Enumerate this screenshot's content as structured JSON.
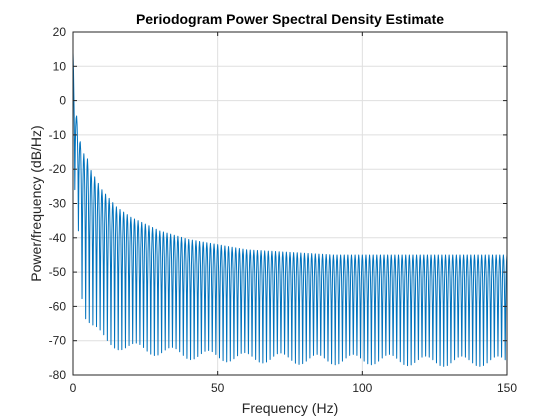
{
  "chart_data": {
    "type": "line",
    "title": "Periodogram Power Spectral Density Estimate",
    "xlabel": "Frequency (Hz)",
    "ylabel": "Power/frequency (dB/Hz)",
    "xlim": [
      0,
      150
    ],
    "ylim": [
      -80,
      20
    ],
    "xticks": [
      0,
      50,
      100,
      150
    ],
    "yticks": [
      20,
      10,
      0,
      -10,
      -20,
      -30,
      -40,
      -50,
      -60,
      -70,
      -80
    ],
    "grid": true,
    "color": "#0072BD",
    "series": [
      {
        "x": [
          0,
          0.5,
          1,
          1.5,
          2,
          2.5,
          3,
          3.5,
          4,
          5,
          6,
          8,
          10,
          12,
          15,
          20,
          25,
          30,
          40,
          50,
          60,
          70,
          80,
          90,
          100,
          110,
          120,
          130,
          140,
          150
        ],
        "peak": [
          14,
          4,
          -3,
          -6,
          -8,
          -12,
          -14,
          -15,
          -16,
          -17,
          -20,
          -23,
          -26,
          -28,
          -31,
          -34,
          -36,
          -38,
          -40.5,
          -42,
          -43.5,
          -44,
          -44.5,
          -45,
          -45,
          -45,
          -45,
          -45,
          -45,
          -45
        ],
        "trough": [
          -19,
          -24,
          -30,
          -33,
          -38,
          -45,
          -55,
          -60,
          -62,
          -63,
          -65,
          -67,
          -69,
          -70.5,
          -71,
          -72,
          -72.5,
          -73,
          -74,
          -74.5,
          -75,
          -75,
          -75.5,
          -75.5,
          -75.5,
          -75.5,
          -76,
          -76,
          -76,
          -76
        ]
      }
    ]
  }
}
